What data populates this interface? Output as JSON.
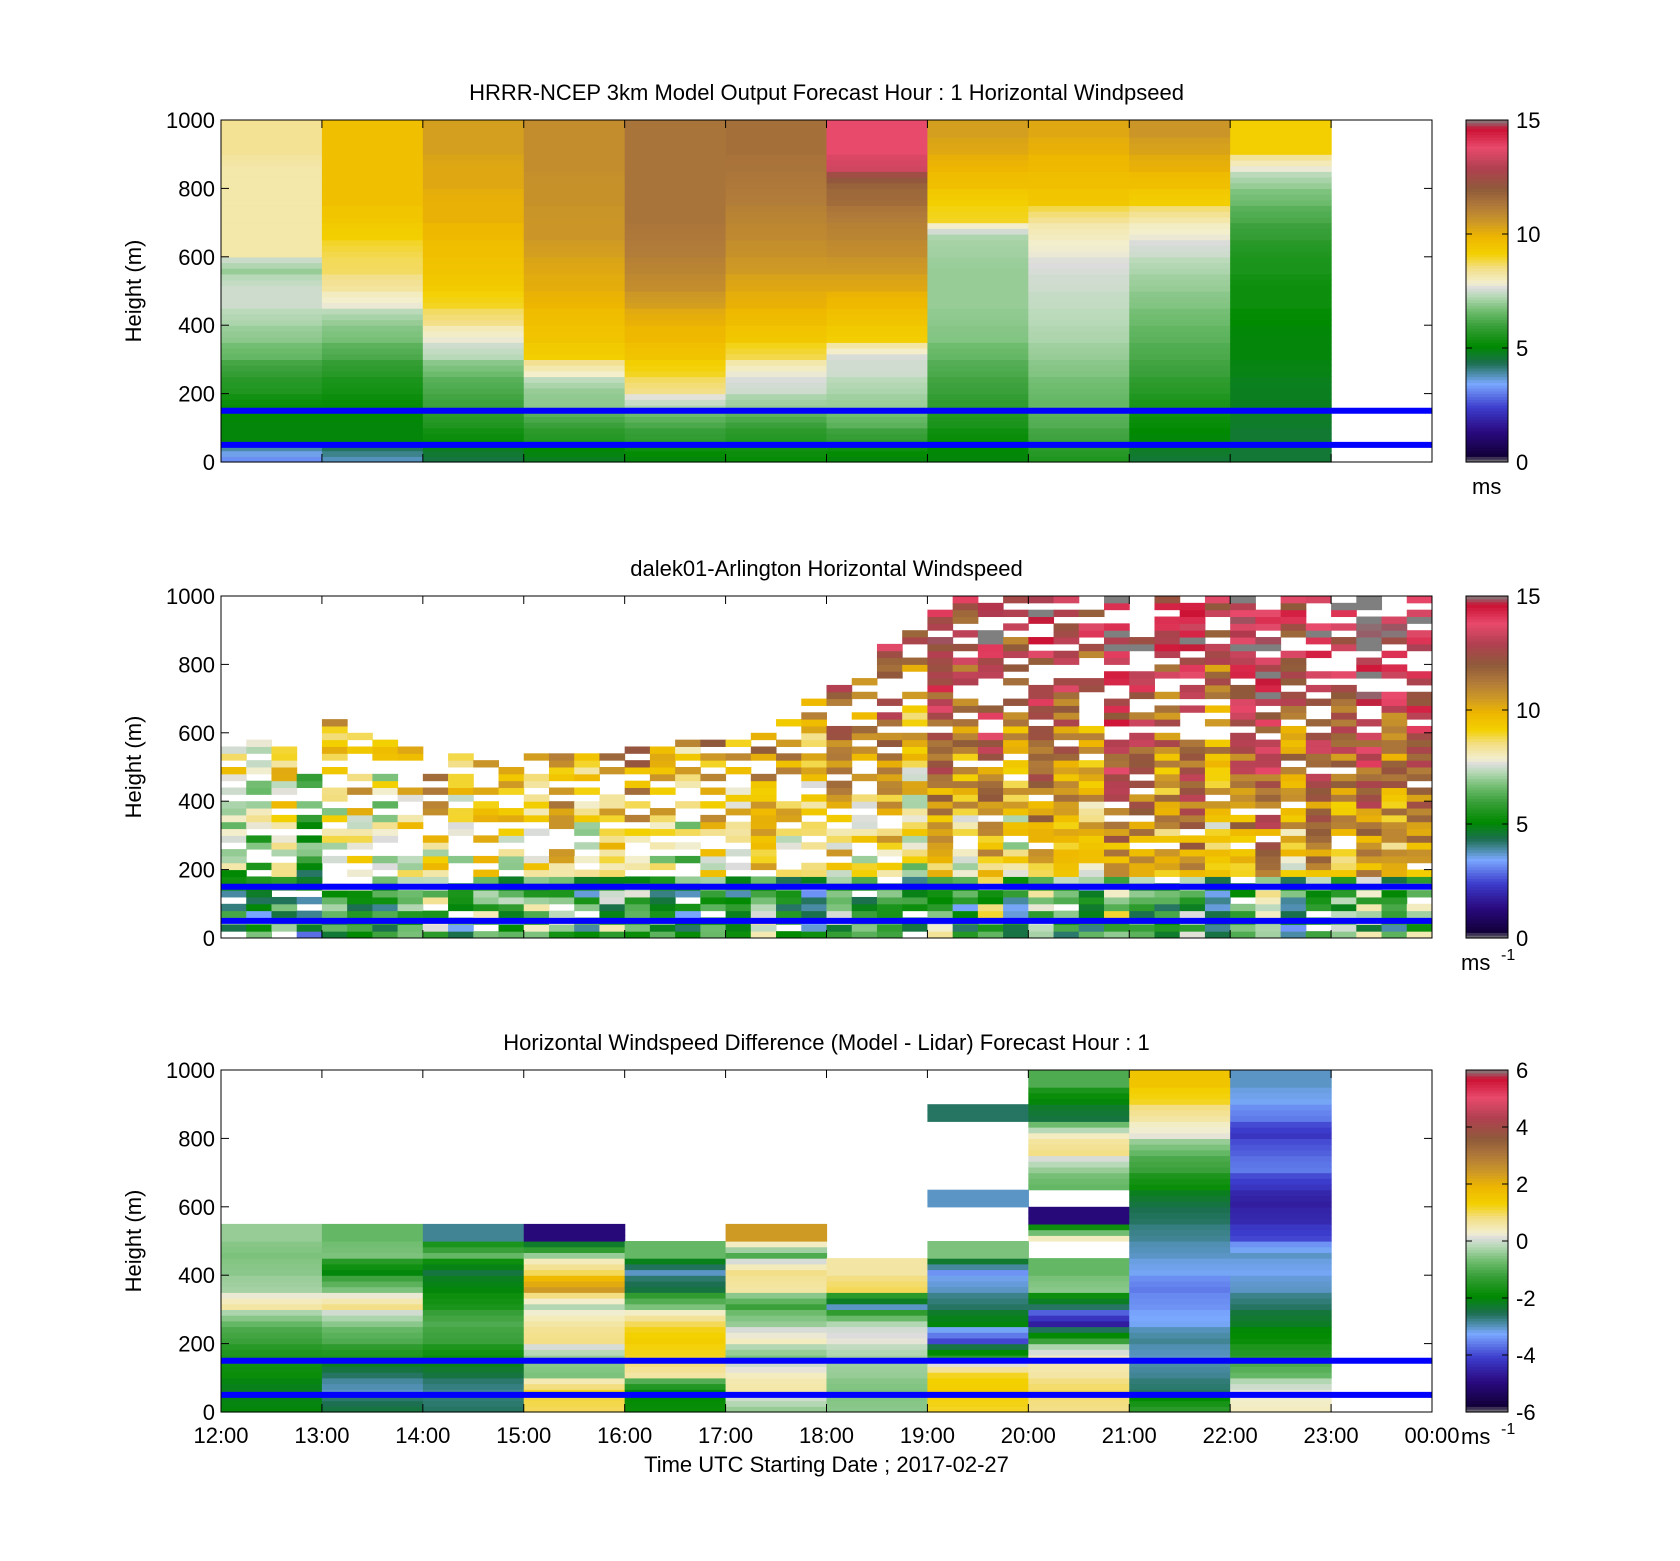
{
  "chart_data": [
    {
      "type": "heatmap",
      "title": "HRRR-NCEP 3km Model Output   Forecast Hour : 1 Horizontal Windpseed",
      "ylabel": "Height (m)",
      "xlabel": "",
      "ylim": [
        0,
        1000
      ],
      "yticks": [
        "0",
        "200",
        "400",
        "600",
        "800",
        "1000"
      ],
      "xlim_hours": [
        12,
        24
      ],
      "show_xtick_labels": false,
      "colorbar": {
        "min": 0,
        "max": 15,
        "ticks": [
          "0",
          "5",
          "10",
          "15"
        ],
        "unit": "ms",
        "unit_sup": ""
      },
      "reference_heights": [
        150,
        50
      ],
      "x_hours": [
        12,
        13,
        14,
        15,
        16,
        17,
        18,
        19,
        20,
        21,
        22
      ],
      "heights": [
        25,
        75,
        125,
        175,
        225,
        275,
        325,
        375,
        425,
        475,
        525,
        575,
        625,
        675,
        725,
        775,
        825,
        875,
        925,
        975
      ],
      "values": [
        [
          3.2,
          5.0,
          5.0,
          5.2,
          5.6,
          5.9,
          6.5,
          6.9,
          7.2,
          7.5,
          7.5,
          7.0,
          8.2,
          8.2,
          8.2,
          8.2,
          8.2,
          8.2,
          8.4,
          8.4
        ],
        [
          3.8,
          5.0,
          5.0,
          5.2,
          5.4,
          5.7,
          6.2,
          6.7,
          7.0,
          7.8,
          8.3,
          8.7,
          8.8,
          9.2,
          9.4,
          9.6,
          9.6,
          9.6,
          9.6,
          9.6
        ],
        [
          4.5,
          5.2,
          5.6,
          6.0,
          6.2,
          6.6,
          7.3,
          7.8,
          8.5,
          9.0,
          9.3,
          9.5,
          9.6,
          9.8,
          10.0,
          10.0,
          10.2,
          10.2,
          10.4,
          10.4
        ],
        [
          4.8,
          5.6,
          6.0,
          6.9,
          7.0,
          7.9,
          9.2,
          9.5,
          9.6,
          9.9,
          10.1,
          10.2,
          10.4,
          10.6,
          10.6,
          10.7,
          10.7,
          10.8,
          10.8,
          10.8
        ],
        [
          5.0,
          5.8,
          6.2,
          7.2,
          8.5,
          9.0,
          9.5,
          9.8,
          10.0,
          10.4,
          10.8,
          11.0,
          11.2,
          11.3,
          11.4,
          11.4,
          11.4,
          11.4,
          11.4,
          11.4
        ],
        [
          5.2,
          5.6,
          6.0,
          7.0,
          7.5,
          7.8,
          8.8,
          9.4,
          9.7,
          10.0,
          10.2,
          10.5,
          10.7,
          10.9,
          11.0,
          11.2,
          11.3,
          11.4,
          11.5,
          11.5
        ],
        [
          5.0,
          5.8,
          6.4,
          7.0,
          7.2,
          7.5,
          7.6,
          9.2,
          9.5,
          9.8,
          10.2,
          10.5,
          10.8,
          11.0,
          11.2,
          11.6,
          11.8,
          13.4,
          13.8,
          13.8
        ],
        [
          5.0,
          5.2,
          5.5,
          5.8,
          6.0,
          6.2,
          6.5,
          6.8,
          6.9,
          7.0,
          7.0,
          7.0,
          7.1,
          7.2,
          9.0,
          9.2,
          9.6,
          9.9,
          10.2,
          10.4
        ],
        [
          5.6,
          6.0,
          6.3,
          6.5,
          6.6,
          6.8,
          7.0,
          7.2,
          7.3,
          7.4,
          7.5,
          7.6,
          7.8,
          8.0,
          8.4,
          9.4,
          9.6,
          9.8,
          10.0,
          10.2
        ],
        [
          4.6,
          5.0,
          5.2,
          5.5,
          5.7,
          6.0,
          6.2,
          6.4,
          6.6,
          6.8,
          7.0,
          7.2,
          7.5,
          7.8,
          8.2,
          9.2,
          9.6,
          10.0,
          10.3,
          10.6
        ],
        [
          4.6,
          4.6,
          4.7,
          4.8,
          4.8,
          4.9,
          5.0,
          5.0,
          5.1,
          5.3,
          5.3,
          5.5,
          5.6,
          5.9,
          6.2,
          6.6,
          7.0,
          7.8,
          9.2,
          9.2
        ]
      ]
    },
    {
      "type": "heatmap",
      "title": "dalek01-Arlington  Horizontal Windspeed",
      "ylabel": "Height (m)",
      "xlabel": "",
      "ylim": [
        0,
        1000
      ],
      "yticks": [
        "0",
        "200",
        "400",
        "600",
        "800",
        "1000"
      ],
      "xlim_hours": [
        12,
        24
      ],
      "show_xtick_labels": false,
      "colorbar": {
        "min": 0,
        "max": 15,
        "ticks": [
          "0",
          "5",
          "10",
          "15"
        ],
        "unit": "ms",
        "unit_sup": "-1"
      },
      "reference_heights": [
        150,
        50
      ],
      "x_hours": [
        12.0,
        12.25,
        12.5,
        12.75,
        13.0,
        13.25,
        13.5,
        13.75,
        14.0,
        14.25,
        14.5,
        14.75,
        15.0,
        15.25,
        15.5,
        15.75,
        16.0,
        16.25,
        16.5,
        16.75,
        17.0,
        17.25,
        17.5,
        17.75,
        18.0,
        18.25,
        18.5,
        18.75,
        19.0,
        19.25,
        19.5,
        19.75,
        20.0,
        20.25,
        20.5,
        20.75,
        21.0,
        21.25,
        21.5,
        21.75,
        22.0,
        22.25,
        22.5,
        22.75,
        23.0,
        23.25,
        23.5,
        23.75
      ],
      "heights": [
        25,
        75,
        125,
        175,
        225,
        275,
        325,
        375,
        425,
        475,
        525,
        575,
        625,
        675,
        725,
        775,
        825,
        875,
        925,
        975
      ],
      "top_of_data": [
        560,
        580,
        550,
        545,
        630,
        620,
        590,
        560,
        545,
        545,
        545,
        545,
        545,
        545,
        545,
        545,
        560,
        560,
        600,
        570,
        580,
        600,
        640,
        700,
        730,
        780,
        850,
        900,
        1000,
        1000,
        1000,
        1000,
        1000,
        1000,
        1000,
        1000,
        1000,
        1000,
        1000,
        1000,
        1000,
        1000,
        1000,
        1000,
        1000,
        1000,
        1000,
        1000
      ],
      "column_shift": [
        0.0,
        -0.6,
        0.5,
        -1.0,
        0.3,
        1.0,
        -0.4,
        0.7,
        1.2,
        -0.2,
        0.9,
        0.4,
        0.8,
        1.3,
        -0.1,
        0.6,
        1.1,
        0.2,
        -0.6,
        0.5,
        -0.3,
        0.8,
        0.1,
        -0.9,
        0.4,
        -0.5,
        0.6,
        -1.2,
        0.9,
        -0.4,
        1.0,
        -1.0,
        0.7,
        0.2,
        -0.7,
        1.3,
        0.5,
        -0.3,
        0.9,
        -1.2,
        0.3,
        1.1,
        -0.8,
        0.6,
        -0.2,
        0.8,
        -0.5,
        0.4
      ]
    },
    {
      "type": "heatmap",
      "title": "Horizontal Windspeed Difference (Model - Lidar) Forecast Hour : 1",
      "ylabel": "Height (m)",
      "xlabel": "Time UTC  Starting Date ; 2017-02-27",
      "ylim": [
        0,
        1000
      ],
      "yticks": [
        "0",
        "200",
        "400",
        "600",
        "800",
        "1000"
      ],
      "xlim_hours": [
        12,
        24
      ],
      "show_xtick_labels": true,
      "xticks": [
        "12:00",
        "13:00",
        "14:00",
        "15:00",
        "16:00",
        "17:00",
        "18:00",
        "19:00",
        "20:00",
        "21:00",
        "22:00",
        "23:00",
        "00:00"
      ],
      "colorbar": {
        "min": -6,
        "max": 6,
        "ticks": [
          "-6",
          "-4",
          "-2",
          "0",
          "2",
          "4",
          "6"
        ],
        "unit": "ms",
        "unit_sup": "-1"
      },
      "reference_heights": [
        150,
        50
      ],
      "x_hours": [
        12,
        13,
        14,
        15,
        16,
        17,
        18,
        19,
        20,
        21,
        22
      ],
      "heights": [
        25,
        75,
        125,
        175,
        225,
        275,
        325,
        375,
        425,
        475,
        525,
        575,
        625,
        675,
        725,
        775,
        825,
        875,
        925,
        975
      ],
      "values": [
        [
          -2.0,
          -2.2,
          -1.8,
          -1.6,
          -1.2,
          -0.8,
          0.6,
          -0.3,
          -0.5,
          -0.6,
          -0.4,
          null,
          null,
          null,
          null,
          null,
          null,
          null,
          null,
          null
        ],
        [
          -2.4,
          -3.0,
          -2.6,
          -1.6,
          -1.0,
          -0.5,
          0.8,
          -0.6,
          -2.0,
          -0.6,
          -0.8,
          null,
          null,
          null,
          null,
          null,
          null,
          null,
          null,
          null
        ],
        [
          -2.6,
          -2.8,
          -2.4,
          -1.8,
          -1.2,
          -1.0,
          -1.6,
          -2.0,
          -2.4,
          -0.8,
          -2.8,
          null,
          null,
          null,
          null,
          null,
          null,
          null,
          null,
          null
        ],
        [
          1.0,
          1.2,
          -0.6,
          -0.4,
          0.8,
          0.6,
          -0.2,
          2.4,
          1.0,
          -0.4,
          -5.0,
          null,
          null,
          null,
          null,
          null,
          null,
          null,
          null,
          null
        ],
        [
          -1.8,
          -2.0,
          0.6,
          1.2,
          1.4,
          1.0,
          -0.6,
          -2.4,
          -3.0,
          -0.8,
          null,
          null,
          null,
          null,
          null,
          null,
          null,
          null,
          null,
          null
        ],
        [
          -0.4,
          0.6,
          0.4,
          -0.6,
          0.4,
          -0.4,
          -1.2,
          0.6,
          0.8,
          -1.0,
          2.4,
          null,
          null,
          null,
          null,
          null,
          null,
          null,
          null,
          null
        ],
        [
          -0.5,
          -0.6,
          -0.4,
          -0.3,
          0.2,
          -0.2,
          -3.0,
          1.0,
          0.6,
          null,
          null,
          null,
          null,
          null,
          null,
          null,
          null,
          null,
          null,
          null
        ],
        [
          1.2,
          1.4,
          1.2,
          -1.4,
          -4.0,
          -2.0,
          -2.6,
          -3.0,
          -3.4,
          -0.6,
          null,
          null,
          -3.0,
          null,
          null,
          null,
          null,
          -2.6,
          null,
          null
        ],
        [
          0.8,
          1.0,
          0.6,
          0.4,
          -1.2,
          -4.6,
          -2.6,
          -0.5,
          -0.8,
          null,
          0.4,
          -5.0,
          null,
          -0.8,
          -0.4,
          0.8,
          0.4,
          -2.4,
          -2.0,
          -1.0
        ],
        [
          -1.4,
          -2.6,
          -2.8,
          -3.0,
          -2.8,
          -3.2,
          -3.4,
          -3.6,
          -3.2,
          -3.0,
          -2.8,
          -2.6,
          -2.4,
          -1.8,
          -1.2,
          -0.8,
          0.2,
          0.6,
          1.2,
          1.6
        ],
        [
          0.4,
          0.2,
          -0.8,
          -1.4,
          -1.8,
          -2.2,
          -2.6,
          -3.0,
          -3.2,
          -3.0,
          -4.0,
          -4.4,
          -4.6,
          -4.2,
          -3.6,
          -3.8,
          -4.2,
          -3.6,
          -3.2,
          -3.0
        ]
      ]
    }
  ]
}
